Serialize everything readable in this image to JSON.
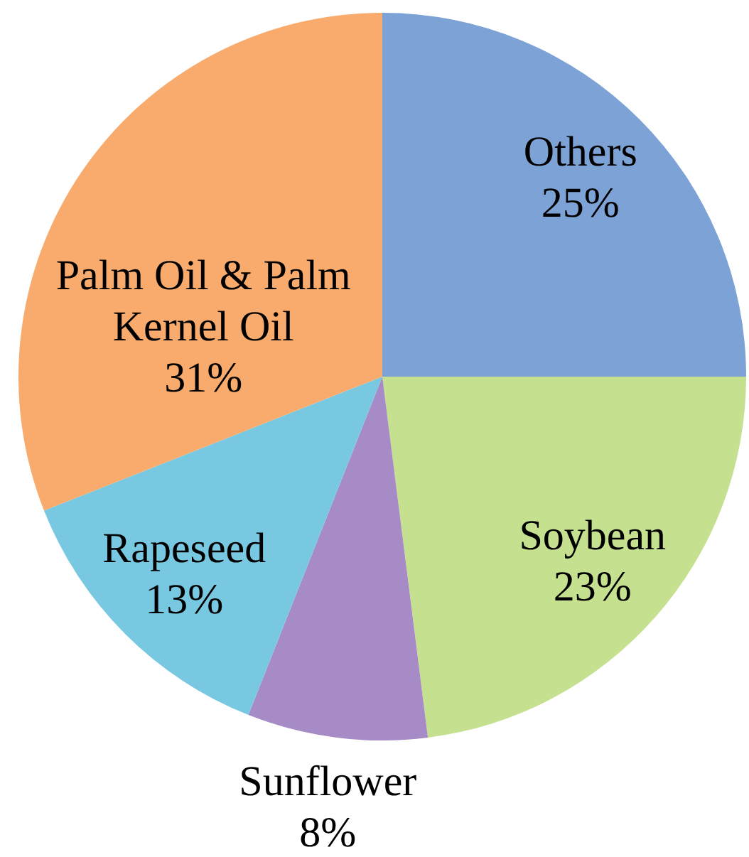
{
  "chart_data": {
    "type": "pie",
    "categories": [
      "Others",
      "Soybean",
      "Sunflower",
      "Rapeseed",
      "Palm Oil & Palm Kernel Oil"
    ],
    "values": [
      25,
      23,
      8,
      13,
      31
    ],
    "value_labels": [
      "25%",
      "23%",
      "8%",
      "13%",
      "31%"
    ],
    "colors": [
      "#7da2d6",
      "#c5e08f",
      "#a68bc6",
      "#78c8e2",
      "#f8ab6c"
    ]
  }
}
